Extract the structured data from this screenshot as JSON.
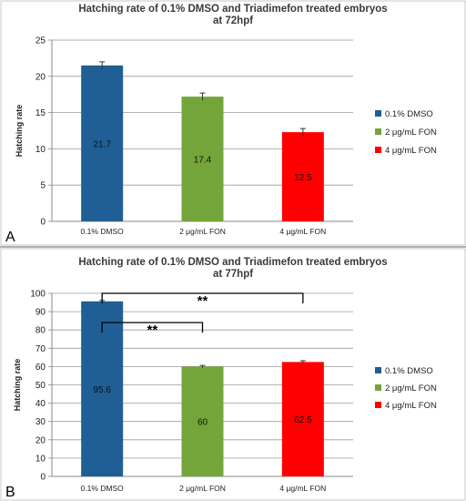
{
  "colors": {
    "dmso": "#1f5f96",
    "fon2": "#74a53a",
    "fon4": "#ff0000",
    "grid": "#9a9a9a",
    "divider": "#b0b0b0"
  },
  "chart_data": [
    {
      "type": "bar",
      "panel_label": "A",
      "title_line1": "Hatching rate of 0.1% DMSO and Triadimefon treated embryos",
      "title_line2": "at 72hpf",
      "ylabel": "Hatching rate",
      "xlabel": "",
      "ylim": [
        0,
        25
      ],
      "yticks": [
        0,
        5,
        10,
        15,
        20,
        25
      ],
      "categories": [
        "0.1% DMSO",
        "2 μg/mL FON",
        "4 μg/mL FON"
      ],
      "values": [
        21.7,
        17.4,
        12.5
      ],
      "bar_heights": [
        21.5,
        17.2,
        12.3
      ],
      "errors": [
        0.5,
        0.5,
        0.5
      ],
      "data_labels": [
        "21.7",
        "17.4",
        "12.5"
      ],
      "legend": [
        "0.1% DMSO",
        "2 μg/mL FON",
        "4 μg/mL FON"
      ],
      "legend_position": "right",
      "grid": true,
      "significance": []
    },
    {
      "type": "bar",
      "panel_label": "B",
      "title_line1": "Hatching rate of 0.1% DMSO and Triadimefon treated embryos",
      "title_line2": "at 77hpf",
      "ylabel": "Hatching rate",
      "xlabel": "",
      "ylim": [
        0,
        100
      ],
      "yticks": [
        0,
        10,
        20,
        30,
        40,
        50,
        60,
        70,
        80,
        90,
        100
      ],
      "categories": [
        "0.1% DMSO",
        "2 μg/mL FON",
        "4 μg/mL FON"
      ],
      "values": [
        95.6,
        60,
        62.5
      ],
      "bar_heights": [
        95.6,
        60,
        62.5
      ],
      "errors": [
        0.5,
        0.6,
        0.7
      ],
      "data_labels": [
        "95.6",
        "60",
        "62.5"
      ],
      "legend": [
        "0.1% DMSO",
        "2 μg/mL FON",
        "4 μg/mL FON"
      ],
      "legend_position": "right",
      "grid": true,
      "significance": [
        {
          "from": 0,
          "to": 2,
          "label": "**",
          "level": 100
        },
        {
          "from": 0,
          "to": 1,
          "label": "**",
          "level": 84
        }
      ]
    }
  ]
}
